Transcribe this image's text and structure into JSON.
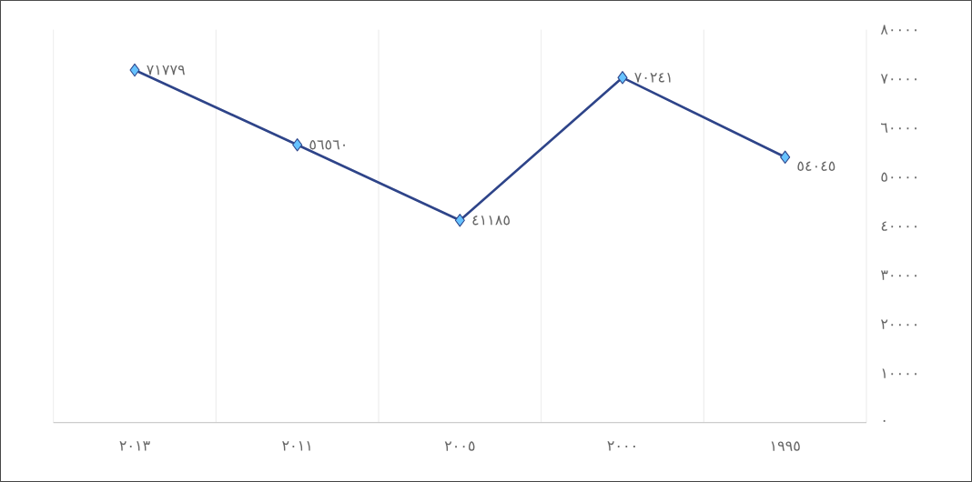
{
  "chart_data": {
    "type": "line",
    "categories": [
      "٢٠١٣",
      "٢٠١١",
      "٢٠٠٥",
      "٢٠٠٠",
      "١٩٩٥"
    ],
    "series": [
      {
        "color": "#2e4489",
        "values": [
          71779,
          56560,
          41185,
          70241,
          54045
        ],
        "value_labels": [
          "٧١٧٧٩",
          "٥٦٥٦٠",
          "٤١١٨٥",
          "٧٠٢٤١",
          "٥٤٠٤٥"
        ]
      }
    ],
    "ylim": [
      0,
      80000
    ],
    "yticks": [
      {
        "value": 0,
        "label": "٠"
      },
      {
        "value": 10000,
        "label": "١٠٠٠٠"
      },
      {
        "value": 20000,
        "label": "٢٠٠٠٠"
      },
      {
        "value": 30000,
        "label": "٣٠٠٠٠"
      },
      {
        "value": 40000,
        "label": "٤٠٠٠٠"
      },
      {
        "value": 50000,
        "label": "٥٠٠٠٠"
      },
      {
        "value": 60000,
        "label": "٦٠٠٠٠"
      },
      {
        "value": 70000,
        "label": "٧٠٠٠٠"
      },
      {
        "value": 80000,
        "label": "٨٠٠٠٠"
      }
    ],
    "grid": "x",
    "marker": "diamond",
    "line_style": "solid"
  }
}
